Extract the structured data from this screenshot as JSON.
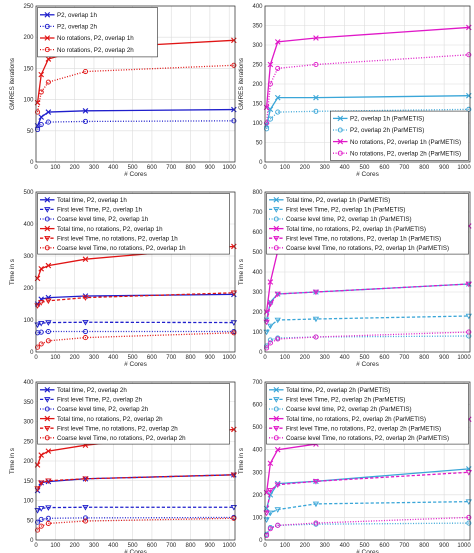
{
  "chart_data": [
    {
      "type": "line",
      "xlabel": "# Cores",
      "ylabel": "GMRES iterations",
      "xlim": [
        0,
        1030
      ],
      "ylim": [
        0,
        250
      ],
      "xticks": [
        "0",
        "100",
        "200",
        "300",
        "400",
        "500",
        "600",
        "700",
        "800",
        "900",
        "1000"
      ],
      "yticks": [
        "0",
        "50",
        "100",
        "150",
        "200",
        "250"
      ],
      "grid": true,
      "legend_position": "top-left",
      "series": [
        {
          "name": "P2, overlap 1h",
          "color": "#1f1fcc",
          "dash": "solid",
          "marker": "x",
          "x": [
            8,
            27,
            64,
            256,
            1024
          ],
          "y": [
            58,
            72,
            80,
            82,
            84
          ]
        },
        {
          "name": "P2, overlap 2h",
          "color": "#1f1fcc",
          "dash": "dotted",
          "marker": "o",
          "x": [
            8,
            27,
            64,
            256,
            1024
          ],
          "y": [
            52,
            60,
            64,
            65,
            66
          ]
        },
        {
          "name": "No rotations, P2, overlap 1h",
          "color": "#e01414",
          "dash": "solid",
          "marker": "x",
          "x": [
            8,
            27,
            64,
            256,
            1024
          ],
          "y": [
            95,
            140,
            165,
            182,
            195
          ]
        },
        {
          "name": "No rotations, P2, overlap 2h",
          "color": "#e01414",
          "dash": "dotted",
          "marker": "o",
          "x": [
            8,
            27,
            64,
            256,
            1024
          ],
          "y": [
            80,
            112,
            128,
            145,
            155
          ]
        }
      ]
    },
    {
      "type": "line",
      "xlabel": "# Cores",
      "ylabel": "GMRES iterations",
      "xlim": [
        0,
        1030
      ],
      "ylim": [
        0,
        400
      ],
      "xticks": [
        "0",
        "100",
        "200",
        "300",
        "400",
        "500",
        "600",
        "700",
        "800",
        "900",
        "1000"
      ],
      "yticks": [
        "0",
        "50",
        "100",
        "150",
        "200",
        "250",
        "300",
        "350",
        "400"
      ],
      "grid": true,
      "legend_position": "bottom-right",
      "series": [
        {
          "name": "P2, overlap 1h (ParMETIS)",
          "color": "#3aa6d8",
          "dash": "solid",
          "marker": "x",
          "x": [
            8,
            27,
            64,
            256,
            1024
          ],
          "y": [
            95,
            135,
            165,
            165,
            170
          ]
        },
        {
          "name": "P2, overlap 2h (ParMETIS)",
          "color": "#3aa6d8",
          "dash": "dotted",
          "marker": "o",
          "x": [
            8,
            27,
            64,
            256,
            1024
          ],
          "y": [
            85,
            110,
            128,
            130,
            135
          ]
        },
        {
          "name": "No rotations, P2, overlap 1h (ParMETIS)",
          "color": "#e018c8",
          "dash": "solid",
          "marker": "x",
          "x": [
            8,
            27,
            64,
            256,
            1024
          ],
          "y": [
            140,
            250,
            308,
            318,
            345
          ]
        },
        {
          "name": "No rotations, P2, overlap 2h (ParMETIS)",
          "color": "#e018c8",
          "dash": "dotted",
          "marker": "o",
          "x": [
            8,
            27,
            64,
            256,
            1024
          ],
          "y": [
            100,
            200,
            240,
            250,
            275
          ]
        }
      ]
    },
    {
      "type": "line",
      "xlabel": "# Cores",
      "ylabel": "Time in s",
      "xlim": [
        0,
        1030
      ],
      "ylim": [
        0,
        500
      ],
      "xticks": [
        "0",
        "100",
        "200",
        "300",
        "400",
        "500",
        "600",
        "700",
        "800",
        "900",
        "1000"
      ],
      "yticks": [
        "0",
        "100",
        "200",
        "300",
        "400",
        "500"
      ],
      "grid": true,
      "legend_position": "top-left",
      "series": [
        {
          "name": "Total time, P2, overlap 1h",
          "color": "#1f1fcc",
          "dash": "solid",
          "marker": "x",
          "x": [
            8,
            27,
            64,
            256,
            1024
          ],
          "y": [
            150,
            165,
            170,
            175,
            180
          ]
        },
        {
          "name": "First level Time, P2, overlap 1h",
          "color": "#1f1fcc",
          "dash": "dashed",
          "marker": "v",
          "x": [
            8,
            27,
            64,
            256,
            1024
          ],
          "y": [
            85,
            90,
            92,
            93,
            92
          ]
        },
        {
          "name": "Coarse level time, P2, overlap 1h",
          "color": "#1f1fcc",
          "dash": "dotted",
          "marker": "o",
          "x": [
            8,
            27,
            64,
            256,
            1024
          ],
          "y": [
            60,
            62,
            64,
            64,
            64
          ]
        },
        {
          "name": "Total time, no rotations, P2, overlap 1h",
          "color": "#e01414",
          "dash": "solid",
          "marker": "x",
          "x": [
            8,
            27,
            64,
            256,
            1024
          ],
          "y": [
            230,
            260,
            270,
            290,
            330
          ]
        },
        {
          "name": "First level Time, no rotations, P2, overlap 1h",
          "color": "#e01414",
          "dash": "dashed",
          "marker": "v",
          "x": [
            8,
            27,
            64,
            256,
            1024
          ],
          "y": [
            145,
            155,
            160,
            170,
            185
          ]
        },
        {
          "name": "Coarse level Time, no rotations, P2, overlap 1h",
          "color": "#e01414",
          "dash": "dotted",
          "marker": "o",
          "x": [
            8,
            27,
            64,
            256,
            1024
          ],
          "y": [
            15,
            25,
            35,
            45,
            60
          ]
        }
      ]
    },
    {
      "type": "line",
      "xlabel": "# Cores",
      "ylabel": "Time in s",
      "xlim": [
        0,
        1030
      ],
      "ylim": [
        0,
        800
      ],
      "xticks": [
        "0",
        "100",
        "200",
        "300",
        "400",
        "500",
        "600",
        "700",
        "800",
        "900",
        "1000"
      ],
      "yticks": [
        "0",
        "100",
        "200",
        "300",
        "400",
        "500",
        "600",
        "700",
        "800"
      ],
      "grid": true,
      "legend_position": "top-left",
      "series": [
        {
          "name": "Total time, P2, overlap 1h (ParMETIS)",
          "color": "#3aa6d8",
          "dash": "solid",
          "marker": "x",
          "x": [
            8,
            27,
            64,
            256,
            1024
          ],
          "y": [
            160,
            250,
            290,
            300,
            340
          ]
        },
        {
          "name": "First level Time, P2, overlap 1h (ParMETIS)",
          "color": "#3aa6d8",
          "dash": "dashed",
          "marker": "v",
          "x": [
            8,
            27,
            64,
            256,
            1024
          ],
          "y": [
            100,
            130,
            160,
            165,
            180
          ]
        },
        {
          "name": "Coarse level time, P2, overlap 1h (ParMETIS)",
          "color": "#3aa6d8",
          "dash": "dotted",
          "marker": "o",
          "x": [
            8,
            27,
            64,
            256,
            1024
          ],
          "y": [
            30,
            60,
            70,
            75,
            80
          ]
        },
        {
          "name": "Total time, no rotations, P2, overlap 1h (ParMETIS)",
          "color": "#e018c8",
          "dash": "solid",
          "marker": "x",
          "x": [
            8,
            27,
            64,
            256,
            1024
          ],
          "y": [
            200,
            350,
            505,
            525,
            630
          ]
        },
        {
          "name": "First level Time, no rotations, P2, overlap 1h (ParMETIS)",
          "color": "#e018c8",
          "dash": "dashed",
          "marker": "v",
          "x": [
            8,
            27,
            64,
            256,
            1024
          ],
          "y": [
            150,
            240,
            290,
            300,
            340
          ]
        },
        {
          "name": "Coarse level Time, no rotations, P2, overlap 1h (ParMETIS)",
          "color": "#e018c8",
          "dash": "dotted",
          "marker": "o",
          "x": [
            8,
            27,
            64,
            256,
            1024
          ],
          "y": [
            20,
            45,
            65,
            75,
            100
          ]
        }
      ]
    },
    {
      "type": "line",
      "xlabel": "# Cores",
      "ylabel": "Time in s",
      "xlim": [
        0,
        1030
      ],
      "ylim": [
        0,
        400
      ],
      "xticks": [
        "0",
        "100",
        "200",
        "300",
        "400",
        "500",
        "600",
        "700",
        "800",
        "900",
        "1000"
      ],
      "yticks": [
        "0",
        "50",
        "100",
        "150",
        "200",
        "250",
        "300",
        "350",
        "400"
      ],
      "grid": true,
      "legend_position": "top-left",
      "series": [
        {
          "name": "Total time, P2, overlap 2h",
          "color": "#1f1fcc",
          "dash": "solid",
          "marker": "x",
          "x": [
            8,
            27,
            64,
            256,
            1024
          ],
          "y": [
            125,
            145,
            148,
            155,
            165
          ]
        },
        {
          "name": "First level Time, P2, overlap 2h",
          "color": "#1f1fcc",
          "dash": "dashed",
          "marker": "v",
          "x": [
            8,
            27,
            64,
            256,
            1024
          ],
          "y": [
            75,
            80,
            82,
            83,
            83
          ]
        },
        {
          "name": "Coarse level time, P2, overlap 2h",
          "color": "#1f1fcc",
          "dash": "dotted",
          "marker": "o",
          "x": [
            8,
            27,
            64,
            256,
            1024
          ],
          "y": [
            45,
            52,
            55,
            56,
            57
          ]
        },
        {
          "name": "Total time, no rotations, P2, overlap 2h",
          "color": "#e01414",
          "dash": "solid",
          "marker": "x",
          "x": [
            8,
            27,
            64,
            256,
            1024
          ],
          "y": [
            190,
            215,
            225,
            240,
            280
          ]
        },
        {
          "name": "First level Time, no rotations, P2, overlap 2h",
          "color": "#e01414",
          "dash": "dashed",
          "marker": "v",
          "x": [
            8,
            27,
            64,
            256,
            1024
          ],
          "y": [
            130,
            145,
            150,
            155,
            165
          ]
        },
        {
          "name": "Coarse level Time, no rotations, P2, overlap 2h",
          "color": "#e01414",
          "dash": "dotted",
          "marker": "o",
          "x": [
            8,
            27,
            64,
            256,
            1024
          ],
          "y": [
            25,
            35,
            42,
            48,
            55
          ]
        }
      ]
    },
    {
      "type": "line",
      "xlabel": "# Cores",
      "ylabel": "Time in s",
      "xlim": [
        0,
        1030
      ],
      "ylim": [
        0,
        700
      ],
      "xticks": [
        "0",
        "100",
        "200",
        "300",
        "400",
        "500",
        "600",
        "700",
        "800",
        "900",
        "1000"
      ],
      "yticks": [
        "0",
        "100",
        "200",
        "300",
        "400",
        "500",
        "600",
        "700"
      ],
      "grid": true,
      "legend_position": "top-left",
      "series": [
        {
          "name": "Total time, P2, overlap 2h (ParMETIS)",
          "color": "#3aa6d8",
          "dash": "solid",
          "marker": "x",
          "x": [
            8,
            27,
            64,
            256,
            1024
          ],
          "y": [
            140,
            200,
            250,
            260,
            315
          ]
        },
        {
          "name": "First level Time, P2, overlap 2h (ParMETIS)",
          "color": "#3aa6d8",
          "dash": "dashed",
          "marker": "v",
          "x": [
            8,
            27,
            64,
            256,
            1024
          ],
          "y": [
            90,
            120,
            135,
            160,
            170
          ]
        },
        {
          "name": "Coarse level time, P2, overlap 2h (ParMETIS)",
          "color": "#3aa6d8",
          "dash": "dotted",
          "marker": "o",
          "x": [
            8,
            27,
            64,
            256,
            1024
          ],
          "y": [
            25,
            55,
            65,
            70,
            75
          ]
        },
        {
          "name": "Total time, no rotations, P2, overlap 2h (ParMETIS)",
          "color": "#e018c8",
          "dash": "solid",
          "marker": "x",
          "x": [
            8,
            27,
            64,
            256,
            1024
          ],
          "y": [
            210,
            340,
            400,
            425,
            535
          ]
        },
        {
          "name": "First level Time, no rotations, P2, overlap 2h (ParMETIS)",
          "color": "#e018c8",
          "dash": "dashed",
          "marker": "v",
          "x": [
            8,
            27,
            64,
            256,
            1024
          ],
          "y": [
            120,
            220,
            245,
            260,
            300
          ]
        },
        {
          "name": "Coarse level Time, no rotations, P2, overlap 2h (ParMETIS)",
          "color": "#e018c8",
          "dash": "dotted",
          "marker": "o",
          "x": [
            8,
            27,
            64,
            256,
            1024
          ],
          "y": [
            20,
            50,
            65,
            75,
            100
          ]
        }
      ]
    }
  ]
}
